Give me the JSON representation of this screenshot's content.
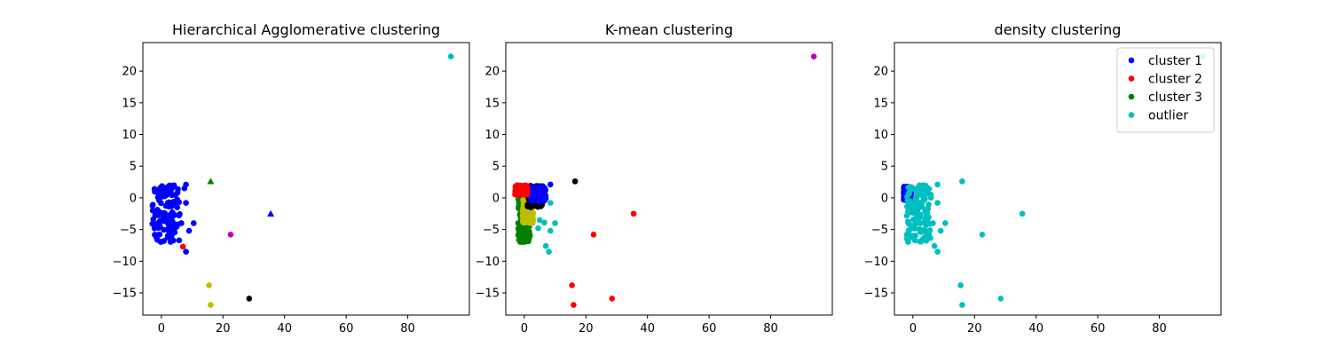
{
  "chart_data": [
    {
      "type": "scatter",
      "title": "Hierarchical Agglomerative clustering",
      "xlim": [
        -6,
        100
      ],
      "ylim": [
        -18.5,
        24.5
      ],
      "xticks": [
        0,
        20,
        40,
        60,
        80
      ],
      "yticks": [
        -15,
        -10,
        -5,
        0,
        5,
        10,
        15,
        20
      ],
      "grid": false,
      "cluster_regions": [
        {
          "color": "#0000ff",
          "x_range": [
            -3,
            6
          ],
          "y_range": [
            -7,
            2
          ]
        }
      ],
      "points": [
        {
          "x": 94,
          "y": 22.3,
          "color": "#00bfbf",
          "marker": "circle"
        },
        {
          "x": 16,
          "y": 2.6,
          "color": "#008000",
          "marker": "triangle"
        },
        {
          "x": 35.5,
          "y": -2.5,
          "color": "#0000ff",
          "marker": "triangle"
        },
        {
          "x": 22.5,
          "y": -5.8,
          "color": "#bf00bf",
          "marker": "circle"
        },
        {
          "x": 7,
          "y": -7.7,
          "color": "#ff0000",
          "marker": "circle"
        },
        {
          "x": 8,
          "y": -8.5,
          "color": "#0000ff",
          "marker": "circle"
        },
        {
          "x": 8,
          "y": 2.1,
          "color": "#0000ff",
          "marker": "circle"
        },
        {
          "x": 10.5,
          "y": -4,
          "color": "#0000ff",
          "marker": "circle"
        },
        {
          "x": 9,
          "y": -5.2,
          "color": "#0000ff",
          "marker": "circle"
        },
        {
          "x": 6.5,
          "y": -4,
          "color": "#0000ff",
          "marker": "circle"
        },
        {
          "x": 8,
          "y": -0.8,
          "color": "#0000ff",
          "marker": "circle"
        },
        {
          "x": 7.5,
          "y": 1.5,
          "color": "#0000ff",
          "marker": "circle"
        },
        {
          "x": 15.5,
          "y": -13.8,
          "color": "#bfbf00",
          "marker": "circle"
        },
        {
          "x": 16,
          "y": -16.9,
          "color": "#bfbf00",
          "marker": "circle"
        },
        {
          "x": 28.5,
          "y": -15.9,
          "color": "#000000",
          "marker": "circle"
        }
      ]
    },
    {
      "type": "scatter",
      "title": "K-mean clustering",
      "xlim": [
        -6,
        100
      ],
      "ylim": [
        -18.5,
        24.5
      ],
      "xticks": [
        0,
        20,
        40,
        60,
        80
      ],
      "yticks": [
        -15,
        -10,
        -5,
        0,
        5,
        10,
        15,
        20
      ],
      "grid": false,
      "cluster_regions": [
        {
          "color": "#008000",
          "x_range": [
            -2,
            2
          ],
          "y_range": [
            -7,
            1
          ]
        },
        {
          "color": "#bfbf00",
          "x_range": [
            -0.5,
            3
          ],
          "y_range": [
            -4,
            0
          ]
        },
        {
          "color": "#000000",
          "x_range": [
            1,
            6
          ],
          "y_range": [
            -1.5,
            2
          ]
        },
        {
          "color": "#0000ff",
          "x_range": [
            2,
            7
          ],
          "y_range": [
            -0.5,
            1.8
          ]
        },
        {
          "color": "#ff0000",
          "x_range": [
            -3,
            1
          ],
          "y_range": [
            0.5,
            2
          ]
        }
      ],
      "points": [
        {
          "x": 94,
          "y": 22.3,
          "color": "#bf00bf",
          "marker": "circle"
        },
        {
          "x": 16.5,
          "y": 2.6,
          "color": "#000000",
          "marker": "circle"
        },
        {
          "x": 35.5,
          "y": -2.5,
          "color": "#ff0000",
          "marker": "circle"
        },
        {
          "x": 22.5,
          "y": -5.8,
          "color": "#ff0000",
          "marker": "circle"
        },
        {
          "x": 15.5,
          "y": -13.8,
          "color": "#ff0000",
          "marker": "circle"
        },
        {
          "x": 16,
          "y": -16.9,
          "color": "#ff0000",
          "marker": "circle"
        },
        {
          "x": 28.5,
          "y": -15.9,
          "color": "#ff0000",
          "marker": "circle"
        },
        {
          "x": 8.5,
          "y": 2.1,
          "color": "#0000ff",
          "marker": "circle"
        },
        {
          "x": 8.5,
          "y": -0.8,
          "color": "#00bfbf",
          "marker": "circle"
        },
        {
          "x": 10,
          "y": -4,
          "color": "#00bfbf",
          "marker": "circle"
        },
        {
          "x": 8.5,
          "y": -5.2,
          "color": "#00bfbf",
          "marker": "circle"
        },
        {
          "x": 7,
          "y": -7.6,
          "color": "#00bfbf",
          "marker": "circle"
        },
        {
          "x": 8,
          "y": -8.5,
          "color": "#00bfbf",
          "marker": "circle"
        },
        {
          "x": 6.5,
          "y": -3.9,
          "color": "#00bfbf",
          "marker": "circle"
        },
        {
          "x": 4.5,
          "y": -4.8,
          "color": "#00bfbf",
          "marker": "circle"
        },
        {
          "x": 5,
          "y": -3.5,
          "color": "#00bfbf",
          "marker": "circle"
        }
      ]
    },
    {
      "type": "scatter",
      "title": "density clustering",
      "xlim": [
        -6,
        100
      ],
      "ylim": [
        -18.5,
        24.5
      ],
      "xticks": [
        0,
        20,
        40,
        60,
        80
      ],
      "yticks": [
        -15,
        -10,
        -5,
        0,
        5,
        10,
        15,
        20
      ],
      "grid": false,
      "legend": {
        "placement": "top-right",
        "entries": [
          {
            "label": "cluster 1",
            "color": "#0000ff"
          },
          {
            "label": "cluster 2",
            "color": "#ff0000"
          },
          {
            "label": "cluster 3",
            "color": "#008000"
          },
          {
            "label": "outlier",
            "color": "#00bfbf"
          }
        ]
      },
      "cluster_regions": [
        {
          "color": "#0000ff",
          "x_range": [
            -3,
            -0.5
          ],
          "y_range": [
            -0.5,
            1.8
          ]
        },
        {
          "color": "#00bfbf",
          "x_range": [
            -2,
            6
          ],
          "y_range": [
            -7,
            2
          ]
        }
      ],
      "points": [
        {
          "x": 94,
          "y": 22.3,
          "color": "#00bfbf",
          "marker": "circle"
        },
        {
          "x": 16,
          "y": 2.6,
          "color": "#00bfbf",
          "marker": "circle"
        },
        {
          "x": 35.5,
          "y": -2.5,
          "color": "#00bfbf",
          "marker": "circle"
        },
        {
          "x": 22.5,
          "y": -5.8,
          "color": "#00bfbf",
          "marker": "circle"
        },
        {
          "x": 15.5,
          "y": -13.8,
          "color": "#00bfbf",
          "marker": "circle"
        },
        {
          "x": 16,
          "y": -16.9,
          "color": "#00bfbf",
          "marker": "circle"
        },
        {
          "x": 28.5,
          "y": -15.9,
          "color": "#00bfbf",
          "marker": "circle"
        },
        {
          "x": 8,
          "y": 2.1,
          "color": "#00bfbf",
          "marker": "circle"
        },
        {
          "x": 10.5,
          "y": -4,
          "color": "#00bfbf",
          "marker": "circle"
        },
        {
          "x": 9,
          "y": -5.2,
          "color": "#00bfbf",
          "marker": "circle"
        },
        {
          "x": 7,
          "y": -7.6,
          "color": "#00bfbf",
          "marker": "circle"
        },
        {
          "x": 8,
          "y": -8.5,
          "color": "#00bfbf",
          "marker": "circle"
        },
        {
          "x": 8,
          "y": -0.8,
          "color": "#00bfbf",
          "marker": "circle"
        },
        {
          "x": 6.5,
          "y": -4,
          "color": "#00bfbf",
          "marker": "circle"
        }
      ]
    }
  ]
}
